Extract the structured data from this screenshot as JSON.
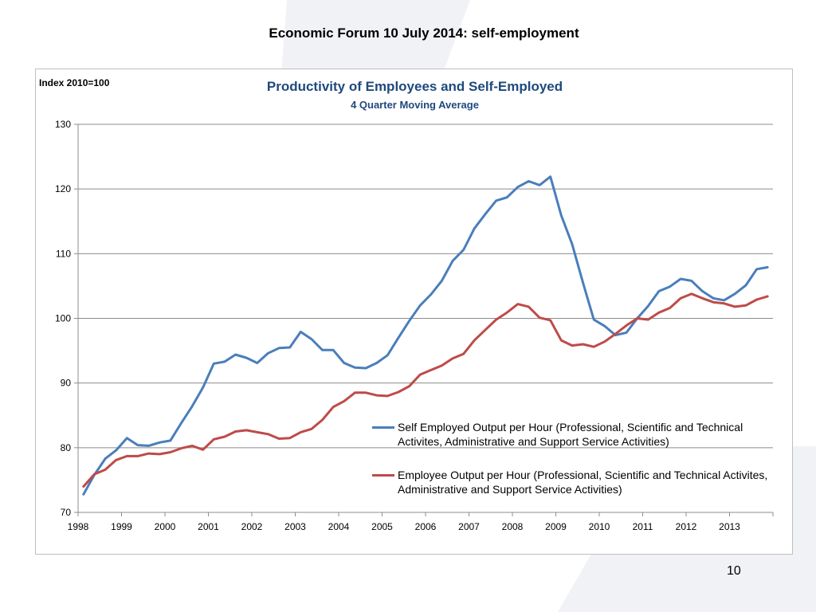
{
  "slide": {
    "title": "Economic Forum 10 July 2014: self-employment",
    "page_number": "10"
  },
  "colors": {
    "title_blue": "#1f497d",
    "self_employed": "#4a7ebb",
    "employee": "#be4b48",
    "watermark": "#e4e8ee"
  },
  "chart_data": {
    "type": "line",
    "title": "Productivity of Employees and Self-Employed",
    "subtitle": "4 Quarter Moving Average",
    "ylabel": "Index 2010=100",
    "xlabel": "",
    "ylim": [
      70,
      130
    ],
    "yticks": [
      70,
      80,
      90,
      100,
      110,
      120,
      130
    ],
    "xticks": [
      "1998",
      "1999",
      "2000",
      "2001",
      "2002",
      "2003",
      "2004",
      "2005",
      "2006",
      "2007",
      "2008",
      "2009",
      "2010",
      "2011",
      "2012",
      "2013"
    ],
    "quarters_per_year": 4,
    "grid": true,
    "legend_position": "lower-right",
    "series": [
      {
        "name": "Self Employed Output per Hour (Professional, Scientific and Technical Activites, Administrative and Support Service Activities)",
        "color": "#4a7ebb",
        "values": [
          72.8,
          75.8,
          78.3,
          79.6,
          81.5,
          80.4,
          80.3,
          80.8,
          81.1,
          83.8,
          86.4,
          89.3,
          93.0,
          93.3,
          94.4,
          93.9,
          93.1,
          94.6,
          95.4,
          95.5,
          97.9,
          96.8,
          95.1,
          95.1,
          93.1,
          92.4,
          92.3,
          93.1,
          94.3,
          97.0,
          99.6,
          102.0,
          103.7,
          105.8,
          108.9,
          110.6,
          113.9,
          116.1,
          118.2,
          118.7,
          120.3,
          121.2,
          120.6,
          121.9,
          115.9,
          111.5,
          105.5,
          99.8,
          98.8,
          97.4,
          97.8,
          100.0,
          101.9,
          104.2,
          104.9,
          106.1,
          105.8,
          104.2,
          103.1,
          102.8,
          103.8,
          105.1,
          107.6,
          107.9
        ]
      },
      {
        "name": "Employee Output per Hour (Professional, Scientific and Technical Activites, Administrative and Support Service Activities)",
        "color": "#be4b48",
        "values": [
          74.0,
          75.9,
          76.6,
          78.1,
          78.7,
          78.7,
          79.1,
          79.0,
          79.3,
          79.9,
          80.3,
          79.7,
          81.3,
          81.7,
          82.5,
          82.7,
          82.4,
          82.1,
          81.4,
          81.5,
          82.4,
          82.9,
          84.3,
          86.3,
          87.2,
          88.5,
          88.5,
          88.1,
          88.0,
          88.6,
          89.5,
          91.3,
          92.0,
          92.7,
          93.8,
          94.5,
          96.6,
          98.2,
          99.8,
          100.9,
          102.2,
          101.8,
          100.1,
          99.7,
          96.6,
          95.8,
          96.0,
          95.6,
          96.4,
          97.6,
          98.9,
          100.0,
          99.8,
          100.9,
          101.6,
          103.1,
          103.8,
          103.1,
          102.5,
          102.3,
          101.8,
          102.0,
          102.9,
          103.4
        ]
      }
    ]
  }
}
